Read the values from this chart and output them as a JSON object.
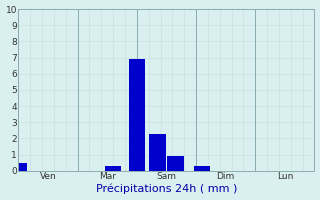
{
  "title": "",
  "xlabel": "Précipitations 24h ( mm )",
  "ylabel": "",
  "background_color": "#daf0f0",
  "bar_color": "#0000cc",
  "grid_color_minor": "#c8dede",
  "grid_color_major": "#8aacac",
  "axis_label_color": "#0000aa",
  "tick_label_color": "#333333",
  "ylim": [
    0,
    10
  ],
  "yticks": [
    0,
    1,
    2,
    3,
    4,
    5,
    6,
    7,
    8,
    9,
    10
  ],
  "num_days": 5,
  "day_labels": [
    "Ven",
    "Mar",
    "Sam",
    "Dim",
    "Lun"
  ],
  "bar_day_index": [
    0,
    1,
    2,
    2,
    2,
    3
  ],
  "bar_day_offset": [
    0.0,
    0.6,
    0.0,
    0.35,
    0.65,
    0.1
  ],
  "bar_heights": [
    0.5,
    0.3,
    6.9,
    2.3,
    0.9,
    0.3
  ],
  "bar_width": 0.28,
  "tick_label_fontsize": 6.5,
  "xlabel_fontsize": 8,
  "figsize": [
    3.2,
    2.0
  ],
  "dpi": 100
}
